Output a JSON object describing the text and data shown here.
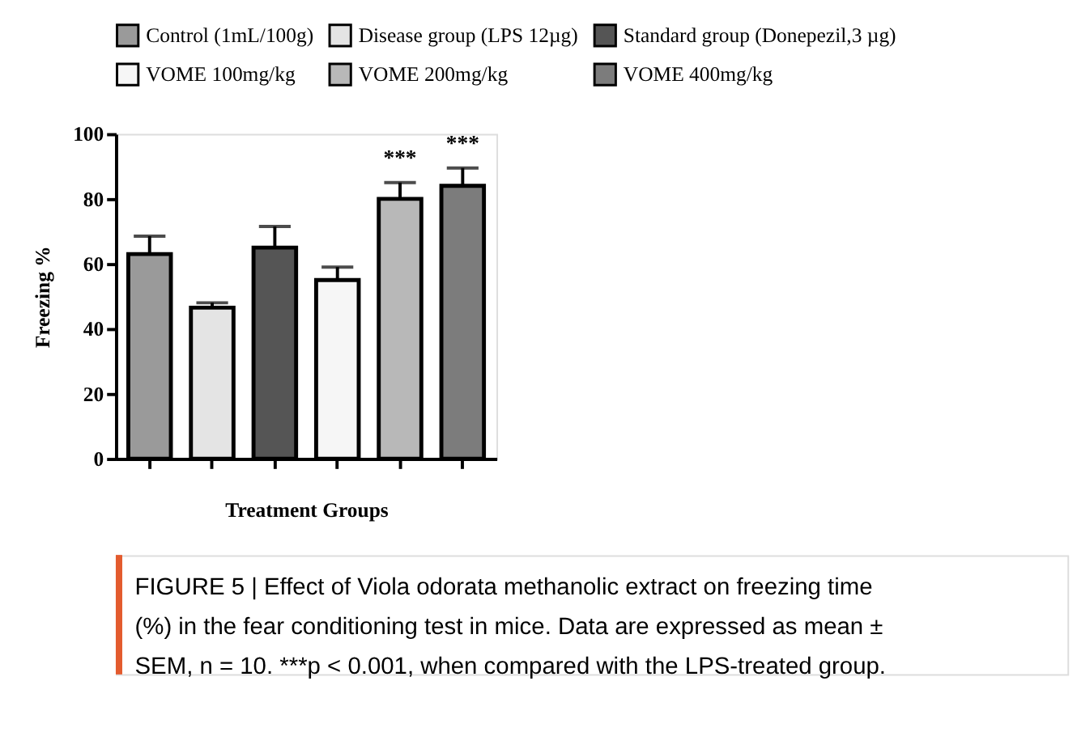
{
  "chart_data": {
    "type": "bar",
    "xlabel": "Treatment Groups",
    "ylabel": "Freezing %",
    "categories": [
      null,
      null,
      null,
      null,
      null,
      null
    ],
    "ylim": [
      0,
      100
    ],
    "yticks": [
      0,
      20,
      40,
      60,
      80,
      100
    ],
    "grid": false,
    "legend": "top",
    "series": [
      {
        "name": "Control (1mL/100g)",
        "color": "#9a9a9a",
        "values": [
          63,
          null,
          null,
          null,
          null,
          null
        ],
        "errors": [
          5.5,
          null,
          null,
          null,
          null,
          null
        ]
      },
      {
        "name": "Disease group (LPS 12µg)",
        "color": "#e4e4e4",
        "values": [
          null,
          46.5,
          null,
          null,
          null,
          null
        ],
        "errors": [
          null,
          1.5,
          null,
          null,
          null,
          null
        ]
      },
      {
        "name": "Standard group (Donepezil,3 µg)",
        "color": "#555555",
        "values": [
          null,
          null,
          65,
          null,
          null,
          null
        ],
        "errors": [
          null,
          null,
          6.5,
          null,
          null,
          null
        ]
      },
      {
        "name": "VOME 100mg/kg",
        "color": "#f6f6f6",
        "values": [
          null,
          null,
          null,
          55,
          null,
          null
        ],
        "errors": [
          null,
          null,
          null,
          4,
          null,
          null
        ]
      },
      {
        "name": "VOME 200mg/kg",
        "color": "#b8b8b8",
        "values": [
          null,
          null,
          null,
          null,
          80,
          null
        ],
        "errors": [
          null,
          null,
          null,
          null,
          5,
          null
        ],
        "value_labels": [
          null,
          null,
          null,
          null,
          "***",
          null
        ]
      },
      {
        "name": "VOME 400mg/kg",
        "color": "#7c7c7c",
        "values": [
          null,
          null,
          null,
          null,
          null,
          84
        ],
        "errors": [
          null,
          null,
          null,
          null,
          null,
          5.5
        ],
        "value_labels": [
          null,
          null,
          null,
          null,
          null,
          "***"
        ]
      }
    ],
    "annotations": [
      "FIGURE 5 | Effect of Viola odorata methanolic extract on freezing time (%) in the fear conditioning test in mice. Data are expressed as mean ± SEM, n = 10. ***p < 0.001, when compared with the LPS-treated group."
    ]
  }
}
